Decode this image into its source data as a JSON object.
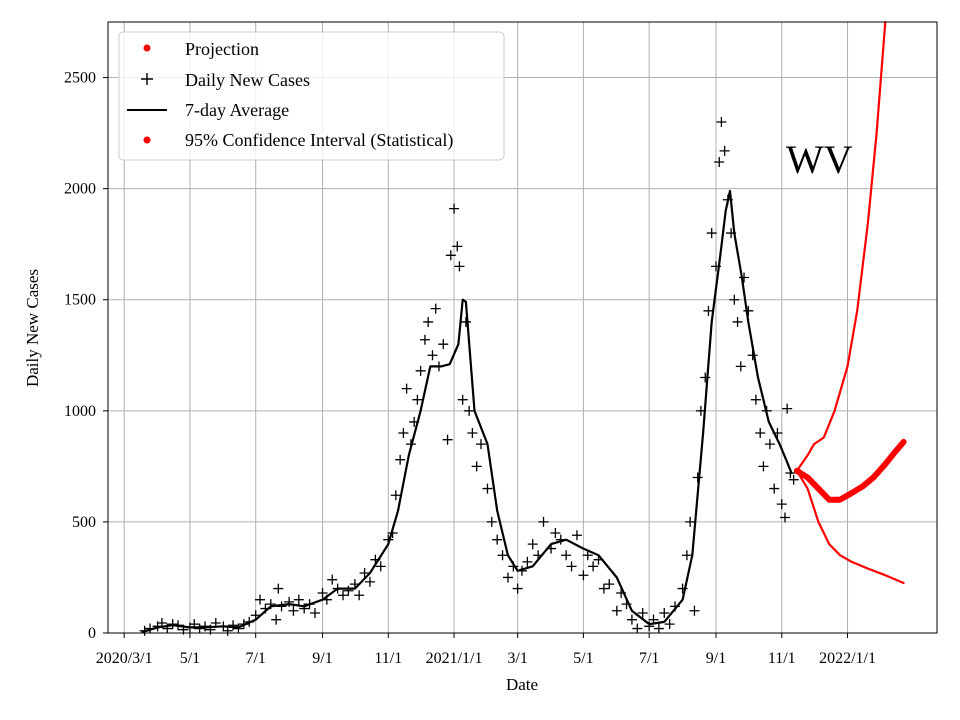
{
  "chart_data": {
    "type": "line",
    "state_label": "WV",
    "xlabel": "Date",
    "ylabel": "Daily New Cases",
    "ylim": [
      0,
      2750
    ],
    "xlim": [
      "2020-02-15",
      "2022-03-25"
    ],
    "x_ticks": [
      {
        "date": "2020-03-01",
        "label": "2020/3/1"
      },
      {
        "date": "2020-05-01",
        "label": "5/1"
      },
      {
        "date": "2020-07-01",
        "label": "7/1"
      },
      {
        "date": "2020-09-01",
        "label": "9/1"
      },
      {
        "date": "2020-11-01",
        "label": "11/1"
      },
      {
        "date": "2021-01-01",
        "label": "2021/1/1"
      },
      {
        "date": "2021-03-01",
        "label": "3/1"
      },
      {
        "date": "2021-05-01",
        "label": "5/1"
      },
      {
        "date": "2021-07-01",
        "label": "7/1"
      },
      {
        "date": "2021-09-01",
        "label": "9/1"
      },
      {
        "date": "2021-11-01",
        "label": "11/1"
      },
      {
        "date": "2022-01-01",
        "label": "2022/1/1"
      }
    ],
    "y_ticks": [
      0,
      500,
      1000,
      1500,
      2000,
      2500
    ],
    "legend": [
      {
        "label": "Projection",
        "marker": "dot",
        "color": "#ff0000"
      },
      {
        "label": "Daily New Cases",
        "marker": "plus",
        "color": "#000000"
      },
      {
        "label": "7-day Average",
        "marker": "line",
        "color": "#000000"
      },
      {
        "label": "95% Confidence Interval (Statistical)",
        "marker": "dot",
        "color": "#ff0000"
      }
    ],
    "legend_position": "top-left",
    "grid": true,
    "series": [
      {
        "name": "7-day Average",
        "color": "#000000",
        "points": [
          [
            "2020-03-18",
            5
          ],
          [
            "2020-04-01",
            25
          ],
          [
            "2020-04-15",
            35
          ],
          [
            "2020-05-01",
            25
          ],
          [
            "2020-05-15",
            25
          ],
          [
            "2020-06-01",
            30
          ],
          [
            "2020-06-15",
            25
          ],
          [
            "2020-07-01",
            60
          ],
          [
            "2020-07-15",
            120
          ],
          [
            "2020-08-01",
            130
          ],
          [
            "2020-08-15",
            120
          ],
          [
            "2020-09-01",
            150
          ],
          [
            "2020-09-15",
            200
          ],
          [
            "2020-10-01",
            200
          ],
          [
            "2020-10-15",
            270
          ],
          [
            "2020-11-01",
            400
          ],
          [
            "2020-11-10",
            550
          ],
          [
            "2020-11-20",
            800
          ],
          [
            "2020-12-01",
            1000
          ],
          [
            "2020-12-10",
            1200
          ],
          [
            "2020-12-20",
            1200
          ],
          [
            "2020-12-28",
            1210
          ],
          [
            "2021-01-05",
            1300
          ],
          [
            "2021-01-09",
            1500
          ],
          [
            "2021-01-12",
            1490
          ],
          [
            "2021-01-20",
            1000
          ],
          [
            "2021-02-01",
            850
          ],
          [
            "2021-02-10",
            550
          ],
          [
            "2021-02-20",
            350
          ],
          [
            "2021-03-01",
            280
          ],
          [
            "2021-03-15",
            300
          ],
          [
            "2021-04-01",
            400
          ],
          [
            "2021-04-15",
            420
          ],
          [
            "2021-05-01",
            380
          ],
          [
            "2021-05-15",
            350
          ],
          [
            "2021-06-01",
            250
          ],
          [
            "2021-06-15",
            100
          ],
          [
            "2021-07-01",
            40
          ],
          [
            "2021-07-15",
            50
          ],
          [
            "2021-08-01",
            150
          ],
          [
            "2021-08-10",
            350
          ],
          [
            "2021-08-20",
            900
          ],
          [
            "2021-08-28",
            1400
          ],
          [
            "2021-09-05",
            1700
          ],
          [
            "2021-09-10",
            1900
          ],
          [
            "2021-09-14",
            1990
          ],
          [
            "2021-09-18",
            1800
          ],
          [
            "2021-09-25",
            1600
          ],
          [
            "2021-10-01",
            1400
          ],
          [
            "2021-10-10",
            1150
          ],
          [
            "2021-10-20",
            950
          ],
          [
            "2021-10-30",
            850
          ],
          [
            "2021-11-05",
            780
          ],
          [
            "2021-11-10",
            720
          ]
        ]
      },
      {
        "name": "Projection",
        "color": "#ff0000",
        "points": [
          [
            "2021-11-15",
            730
          ],
          [
            "2021-11-25",
            700
          ],
          [
            "2021-12-05",
            650
          ],
          [
            "2021-12-15",
            600
          ],
          [
            "2021-12-25",
            600
          ],
          [
            "2022-01-05",
            630
          ],
          [
            "2022-01-15",
            660
          ],
          [
            "2022-01-25",
            700
          ],
          [
            "2022-02-05",
            760
          ],
          [
            "2022-02-15",
            820
          ],
          [
            "2022-02-22",
            860
          ]
        ]
      },
      {
        "name": "95% CI Upper",
        "color": "#ff0000",
        "points": [
          [
            "2021-11-15",
            730
          ],
          [
            "2021-11-25",
            800
          ],
          [
            "2021-12-01",
            850
          ],
          [
            "2021-12-10",
            880
          ],
          [
            "2021-12-20",
            1000
          ],
          [
            "2022-01-01",
            1200
          ],
          [
            "2022-01-10",
            1450
          ],
          [
            "2022-01-20",
            1850
          ],
          [
            "2022-01-28",
            2250
          ],
          [
            "2022-02-05",
            2750
          ]
        ]
      },
      {
        "name": "95% CI Lower",
        "color": "#ff0000",
        "points": [
          [
            "2021-11-15",
            730
          ],
          [
            "2021-11-25",
            650
          ],
          [
            "2021-12-05",
            500
          ],
          [
            "2021-12-15",
            400
          ],
          [
            "2021-12-25",
            350
          ],
          [
            "2022-01-05",
            320
          ],
          [
            "2022-01-20",
            290
          ],
          [
            "2022-02-05",
            260
          ],
          [
            "2022-02-22",
            225
          ]
        ]
      }
    ],
    "daily_new_cases": [
      [
        "2020-03-20",
        10
      ],
      [
        "2020-03-25",
        20
      ],
      [
        "2020-04-01",
        30
      ],
      [
        "2020-04-05",
        45
      ],
      [
        "2020-04-10",
        20
      ],
      [
        "2020-04-15",
        40
      ],
      [
        "2020-04-20",
        35
      ],
      [
        "2020-04-25",
        15
      ],
      [
        "2020-05-01",
        25
      ],
      [
        "2020-05-05",
        40
      ],
      [
        "2020-05-10",
        20
      ],
      [
        "2020-05-15",
        30
      ],
      [
        "2020-05-20",
        15
      ],
      [
        "2020-05-25",
        45
      ],
      [
        "2020-06-01",
        30
      ],
      [
        "2020-06-05",
        10
      ],
      [
        "2020-06-10",
        35
      ],
      [
        "2020-06-15",
        20
      ],
      [
        "2020-06-20",
        40
      ],
      [
        "2020-06-25",
        50
      ],
      [
        "2020-07-01",
        80
      ],
      [
        "2020-07-05",
        150
      ],
      [
        "2020-07-10",
        110
      ],
      [
        "2020-07-15",
        130
      ],
      [
        "2020-07-20",
        60
      ],
      [
        "2020-07-22",
        200
      ],
      [
        "2020-07-25",
        120
      ],
      [
        "2020-08-01",
        140
      ],
      [
        "2020-08-05",
        100
      ],
      [
        "2020-08-10",
        150
      ],
      [
        "2020-08-15",
        110
      ],
      [
        "2020-08-20",
        130
      ],
      [
        "2020-08-25",
        90
      ],
      [
        "2020-09-01",
        180
      ],
      [
        "2020-09-05",
        150
      ],
      [
        "2020-09-10",
        240
      ],
      [
        "2020-09-15",
        200
      ],
      [
        "2020-09-20",
        170
      ],
      [
        "2020-09-25",
        190
      ],
      [
        "2020-10-01",
        220
      ],
      [
        "2020-10-05",
        170
      ],
      [
        "2020-10-10",
        270
      ],
      [
        "2020-10-15",
        230
      ],
      [
        "2020-10-20",
        330
      ],
      [
        "2020-10-25",
        300
      ],
      [
        "2020-11-01",
        420
      ],
      [
        "2020-11-05",
        450
      ],
      [
        "2020-11-08",
        620
      ],
      [
        "2020-11-12",
        780
      ],
      [
        "2020-11-15",
        900
      ],
      [
        "2020-11-18",
        1100
      ],
      [
        "2020-11-22",
        850
      ],
      [
        "2020-11-25",
        950
      ],
      [
        "2020-11-28",
        1050
      ],
      [
        "2020-12-01",
        1180
      ],
      [
        "2020-12-05",
        1320
      ],
      [
        "2020-12-08",
        1400
      ],
      [
        "2020-12-12",
        1250
      ],
      [
        "2020-12-15",
        1460
      ],
      [
        "2020-12-18",
        1200
      ],
      [
        "2020-12-22",
        1300
      ],
      [
        "2020-12-26",
        870
      ],
      [
        "2020-12-29",
        1700
      ],
      [
        "2021-01-01",
        1910
      ],
      [
        "2021-01-04",
        1740
      ],
      [
        "2021-01-06",
        1650
      ],
      [
        "2021-01-09",
        1050
      ],
      [
        "2021-01-12",
        1400
      ],
      [
        "2021-01-15",
        1000
      ],
      [
        "2021-01-18",
        900
      ],
      [
        "2021-01-22",
        750
      ],
      [
        "2021-01-26",
        850
      ],
      [
        "2021-02-01",
        650
      ],
      [
        "2021-02-05",
        500
      ],
      [
        "2021-02-10",
        420
      ],
      [
        "2021-02-15",
        350
      ],
      [
        "2021-02-20",
        250
      ],
      [
        "2021-02-25",
        300
      ],
      [
        "2021-03-01",
        200
      ],
      [
        "2021-03-05",
        280
      ],
      [
        "2021-03-10",
        320
      ],
      [
        "2021-03-15",
        400
      ],
      [
        "2021-03-20",
        350
      ],
      [
        "2021-03-25",
        500
      ],
      [
        "2021-04-01",
        380
      ],
      [
        "2021-04-05",
        450
      ],
      [
        "2021-04-10",
        420
      ],
      [
        "2021-04-15",
        350
      ],
      [
        "2021-04-20",
        300
      ],
      [
        "2021-04-25",
        440
      ],
      [
        "2021-05-01",
        260
      ],
      [
        "2021-05-05",
        350
      ],
      [
        "2021-05-10",
        300
      ],
      [
        "2021-05-15",
        330
      ],
      [
        "2021-05-20",
        200
      ],
      [
        "2021-05-25",
        220
      ],
      [
        "2021-06-01",
        100
      ],
      [
        "2021-06-05",
        180
      ],
      [
        "2021-06-10",
        130
      ],
      [
        "2021-06-15",
        60
      ],
      [
        "2021-06-20",
        20
      ],
      [
        "2021-06-25",
        90
      ],
      [
        "2021-07-01",
        30
      ],
      [
        "2021-07-05",
        60
      ],
      [
        "2021-07-10",
        20
      ],
      [
        "2021-07-15",
        90
      ],
      [
        "2021-07-20",
        40
      ],
      [
        "2021-07-25",
        120
      ],
      [
        "2021-08-01",
        200
      ],
      [
        "2021-08-05",
        350
      ],
      [
        "2021-08-08",
        500
      ],
      [
        "2021-08-12",
        100
      ],
      [
        "2021-08-15",
        700
      ],
      [
        "2021-08-18",
        1000
      ],
      [
        "2021-08-22",
        1150
      ],
      [
        "2021-08-25",
        1450
      ],
      [
        "2021-08-28",
        1800
      ],
      [
        "2021-09-01",
        1650
      ],
      [
        "2021-09-04",
        2120
      ],
      [
        "2021-09-06",
        2300
      ],
      [
        "2021-09-09",
        2170
      ],
      [
        "2021-09-12",
        1950
      ],
      [
        "2021-09-15",
        1800
      ],
      [
        "2021-09-18",
        1500
      ],
      [
        "2021-09-21",
        1400
      ],
      [
        "2021-09-24",
        1200
      ],
      [
        "2021-09-27",
        1600
      ],
      [
        "2021-10-01",
        1450
      ],
      [
        "2021-10-05",
        1250
      ],
      [
        "2021-10-08",
        1050
      ],
      [
        "2021-10-12",
        900
      ],
      [
        "2021-10-15",
        750
      ],
      [
        "2021-10-18",
        1000
      ],
      [
        "2021-10-21",
        850
      ],
      [
        "2021-10-25",
        650
      ],
      [
        "2021-10-28",
        900
      ],
      [
        "2021-11-01",
        580
      ],
      [
        "2021-11-04",
        520
      ],
      [
        "2021-11-06",
        1010
      ],
      [
        "2021-11-09",
        720
      ],
      [
        "2021-11-12",
        690
      ]
    ]
  }
}
